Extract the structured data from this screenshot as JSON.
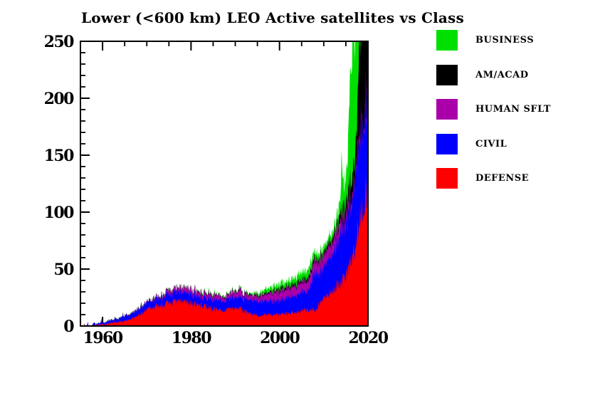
{
  "colors": {
    "background": "#FFFFFF",
    "frame": "#000000",
    "defense": "#FF0000",
    "civil": "#0000FF",
    "human_sflt": "#AA00AA",
    "am_acad": "#000000",
    "business": "#00E000"
  },
  "legend": {
    "items": [
      {
        "label": "BUSINESS",
        "color": "#00E000"
      },
      {
        "label": "AM/ACAD",
        "color": "#000000"
      },
      {
        "label": "HUMAN SFLT",
        "color": "#AA00AA"
      },
      {
        "label": "CIVIL",
        "color": "#0000FF"
      },
      {
        "label": "DEFENSE",
        "color": "#FF0000"
      }
    ]
  },
  "chart_data": {
    "type": "area",
    "stacked": true,
    "title": "Lower (<600 km) LEO Active satellites vs Class",
    "xlabel": "",
    "ylabel": "",
    "xlim": [
      1955,
      2020
    ],
    "ylim": [
      0,
      250
    ],
    "x_major_ticks": [
      1960,
      1980,
      2000,
      2020
    ],
    "x_minor_step": 5,
    "y_major_ticks": [
      0,
      50,
      100,
      150,
      200,
      250
    ],
    "y_minor_step": 10,
    "grid": false,
    "clip_to_axes": true,
    "legend_position": "right",
    "series_order": "bottom-to-top",
    "series": [
      {
        "name": "DEFENSE",
        "color": "#FF0000",
        "anchors": [
          [
            1955,
            0
          ],
          [
            1957.5,
            0
          ],
          [
            1958,
            0.4
          ],
          [
            1959,
            0.8
          ],
          [
            1960,
            1.2
          ],
          [
            1961,
            1.8
          ],
          [
            1962,
            2.5
          ],
          [
            1963,
            3
          ],
          [
            1964,
            3.5
          ],
          [
            1965,
            4.5
          ],
          [
            1966,
            5.5
          ],
          [
            1967,
            7
          ],
          [
            1968,
            9
          ],
          [
            1969,
            11.5
          ],
          [
            1970,
            14
          ],
          [
            1971,
            16
          ],
          [
            1972,
            17
          ],
          [
            1973,
            18
          ],
          [
            1974,
            19
          ],
          [
            1975,
            20
          ],
          [
            1976,
            21
          ],
          [
            1977,
            21
          ],
          [
            1978,
            22
          ],
          [
            1979,
            21
          ],
          [
            1980,
            20
          ],
          [
            1981,
            19
          ],
          [
            1982,
            18
          ],
          [
            1983,
            17
          ],
          [
            1984,
            16
          ],
          [
            1985,
            15
          ],
          [
            1986,
            14.5
          ],
          [
            1987,
            14
          ],
          [
            1988,
            14
          ],
          [
            1989,
            15
          ],
          [
            1990,
            15
          ],
          [
            1991,
            16
          ],
          [
            1992,
            13
          ],
          [
            1993,
            11
          ],
          [
            1994,
            10
          ],
          [
            1995,
            9
          ],
          [
            1996,
            9
          ],
          [
            1997,
            10
          ],
          [
            1998,
            10
          ],
          [
            1999,
            10
          ],
          [
            2000,
            10
          ],
          [
            2001,
            11
          ],
          [
            2002,
            11
          ],
          [
            2003,
            12
          ],
          [
            2004,
            12
          ],
          [
            2005,
            13
          ],
          [
            2006,
            14
          ],
          [
            2007,
            15
          ],
          [
            2008,
            13
          ],
          [
            2009,
            20
          ],
          [
            2010,
            25
          ],
          [
            2011,
            28
          ],
          [
            2012,
            31
          ],
          [
            2013,
            35
          ],
          [
            2014,
            38
          ],
          [
            2015,
            45
          ],
          [
            2016,
            55
          ],
          [
            2017,
            68
          ],
          [
            2018,
            88
          ],
          [
            2019,
            111
          ],
          [
            2020,
            126
          ]
        ]
      },
      {
        "name": "CIVIL",
        "color": "#0000FF",
        "anchors": [
          [
            1955,
            0
          ],
          [
            1957.6,
            0
          ],
          [
            1957.9,
            2
          ],
          [
            1958.4,
            0.8
          ],
          [
            1959,
            1.2
          ],
          [
            1960,
            1.6
          ],
          [
            1961,
            2
          ],
          [
            1962,
            2.5
          ],
          [
            1963,
            3
          ],
          [
            1964,
            3
          ],
          [
            1965,
            4
          ],
          [
            1966,
            4
          ],
          [
            1967,
            5
          ],
          [
            1968,
            5
          ],
          [
            1969,
            6
          ],
          [
            1970,
            6
          ],
          [
            1971,
            6
          ],
          [
            1972,
            7
          ],
          [
            1973,
            7
          ],
          [
            1974,
            7
          ],
          [
            1975,
            7.5
          ],
          [
            1976,
            7.5
          ],
          [
            1977,
            8
          ],
          [
            1978,
            8
          ],
          [
            1979,
            8
          ],
          [
            1980,
            8
          ],
          [
            1981,
            7.5
          ],
          [
            1982,
            7
          ],
          [
            1983,
            7.5
          ],
          [
            1984,
            8
          ],
          [
            1985,
            8
          ],
          [
            1986,
            8
          ],
          [
            1987,
            8
          ],
          [
            1988,
            9
          ],
          [
            1989,
            9
          ],
          [
            1990,
            10
          ],
          [
            1991,
            10
          ],
          [
            1992,
            11
          ],
          [
            1993,
            12
          ],
          [
            1994,
            12
          ],
          [
            1995,
            13
          ],
          [
            1996,
            13
          ],
          [
            1997,
            12
          ],
          [
            1998,
            12
          ],
          [
            1999,
            12
          ],
          [
            2000,
            12
          ],
          [
            2001,
            13
          ],
          [
            2002,
            14
          ],
          [
            2003,
            15
          ],
          [
            2004,
            15
          ],
          [
            2005,
            16
          ],
          [
            2006,
            17
          ],
          [
            2007,
            20
          ],
          [
            2008,
            35
          ],
          [
            2009,
            26
          ],
          [
            2010,
            28
          ],
          [
            2011,
            31
          ],
          [
            2012,
            32
          ],
          [
            2013,
            35
          ],
          [
            2014,
            44
          ],
          [
            2015,
            45
          ],
          [
            2016,
            46
          ],
          [
            2017,
            58
          ],
          [
            2018,
            73
          ],
          [
            2019,
            75
          ],
          [
            2020,
            79
          ]
        ]
      },
      {
        "name": "HUMAN SFLT",
        "color": "#AA00AA",
        "anchors": [
          [
            1955,
            0
          ],
          [
            1961,
            0
          ],
          [
            1963,
            0.2
          ],
          [
            1965,
            0.3
          ],
          [
            1967,
            0.4
          ],
          [
            1969,
            0.6
          ],
          [
            1970,
            0.8
          ],
          [
            1971,
            1
          ],
          [
            1972,
            1.5
          ],
          [
            1973,
            1.5
          ],
          [
            1974,
            2
          ],
          [
            1975,
            3
          ],
          [
            1976,
            3
          ],
          [
            1977,
            3
          ],
          [
            1978,
            4
          ],
          [
            1980,
            4
          ],
          [
            1982,
            4
          ],
          [
            1984,
            4
          ],
          [
            1985,
            4
          ],
          [
            1986,
            3.5
          ],
          [
            1987,
            3
          ],
          [
            1988,
            3
          ],
          [
            1989,
            4
          ],
          [
            1990,
            4.5
          ],
          [
            1990.8,
            5
          ],
          [
            1991.2,
            7
          ],
          [
            1991.6,
            4
          ],
          [
            1992,
            4
          ],
          [
            1993,
            4
          ],
          [
            1994,
            4
          ],
          [
            1995,
            4.5
          ],
          [
            1996,
            5
          ],
          [
            1997,
            6
          ],
          [
            1998,
            7
          ],
          [
            1999,
            8
          ],
          [
            2000,
            8
          ],
          [
            2002,
            8
          ],
          [
            2004,
            9
          ],
          [
            2006,
            9
          ],
          [
            2008,
            10
          ],
          [
            2010,
            10
          ],
          [
            2012,
            10
          ],
          [
            2013,
            11
          ],
          [
            2014,
            10
          ],
          [
            2015,
            8
          ],
          [
            2016,
            7
          ],
          [
            2017,
            5
          ],
          [
            2018,
            5
          ],
          [
            2019,
            4
          ],
          [
            2020,
            5
          ]
        ]
      },
      {
        "name": "AM/ACAD",
        "color": "#000000",
        "anchors": [
          [
            1955,
            0
          ],
          [
            1960,
            0.2
          ],
          [
            1965,
            0.3
          ],
          [
            1970,
            0.5
          ],
          [
            1975,
            0.5
          ],
          [
            1980,
            0.6
          ],
          [
            1985,
            0.8
          ],
          [
            1990,
            1
          ],
          [
            1995,
            1
          ],
          [
            1997,
            1.2
          ],
          [
            1999,
            1.5
          ],
          [
            2000,
            2
          ],
          [
            2002,
            2
          ],
          [
            2004,
            2
          ],
          [
            2006,
            2.5
          ],
          [
            2008,
            3
          ],
          [
            2010,
            3
          ],
          [
            2012,
            4
          ],
          [
            2013,
            5
          ],
          [
            2014,
            8
          ],
          [
            2015,
            10
          ],
          [
            2016,
            16
          ],
          [
            2017,
            14
          ],
          [
            2017.6,
            35
          ],
          [
            2018,
            85
          ],
          [
            2019,
            100
          ],
          [
            2020,
            110
          ]
        ]
      },
      {
        "name": "BUSINESS",
        "color": "#00E000",
        "anchors": [
          [
            1955,
            0
          ],
          [
            1981,
            0
          ],
          [
            1982,
            0.3
          ],
          [
            1983,
            0.6
          ],
          [
            1984,
            1
          ],
          [
            1985,
            1
          ],
          [
            1986,
            0.8
          ],
          [
            1987,
            0.5
          ],
          [
            1989,
            0.5
          ],
          [
            1991,
            0.5
          ],
          [
            1993,
            1
          ],
          [
            1994,
            1.5
          ],
          [
            1995,
            2
          ],
          [
            1996,
            3
          ],
          [
            1997,
            4
          ],
          [
            1998,
            4
          ],
          [
            1999,
            4
          ],
          [
            2000,
            5
          ],
          [
            2002,
            5
          ],
          [
            2004,
            6
          ],
          [
            2006,
            7
          ],
          [
            2007,
            8
          ],
          [
            2008,
            6
          ],
          [
            2009,
            5
          ],
          [
            2010,
            5
          ],
          [
            2011,
            5
          ],
          [
            2012,
            6
          ],
          [
            2013,
            8
          ],
          [
            2013.4,
            14
          ],
          [
            2013.8,
            10
          ],
          [
            2014.05,
            50
          ],
          [
            2014.4,
            18
          ],
          [
            2015,
            25
          ],
          [
            2015.5,
            40
          ],
          [
            2016,
            100
          ],
          [
            2016.5,
            115
          ],
          [
            2017,
            110
          ],
          [
            2018,
            60
          ],
          [
            2019,
            80
          ],
          [
            2020,
            100
          ]
        ]
      }
    ]
  }
}
